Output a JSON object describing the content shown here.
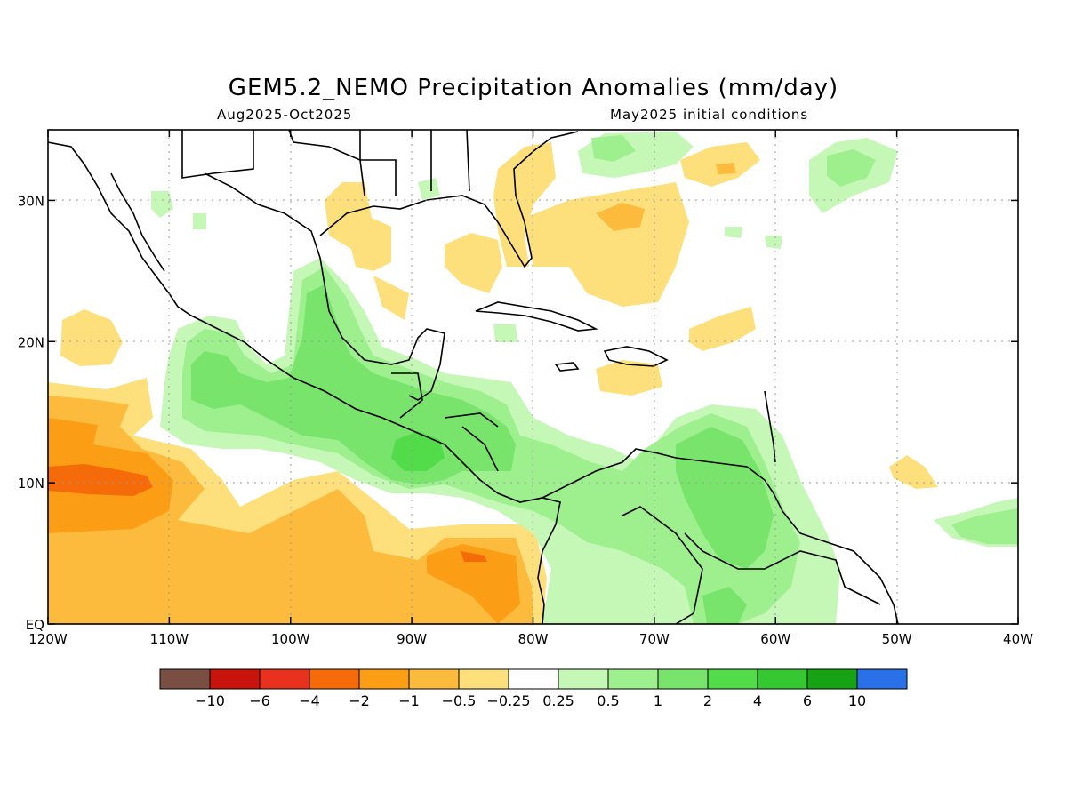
{
  "title": "GEM5.2_NEMO Precipitation Anomalies (mm/day)",
  "period": "Aug2025-Oct2025",
  "init": "May2025 initial conditions",
  "map": {
    "lon_range": [
      -120,
      -40
    ],
    "lat_range": [
      0,
      35
    ],
    "x_ticks": [
      "120W",
      "110W",
      "100W",
      "90W",
      "80W",
      "70W",
      "60W",
      "50W",
      "40W"
    ],
    "y_ticks": [
      "EQ",
      "10N",
      "20N",
      "30N"
    ],
    "grid": true
  },
  "colorbar": {
    "colors": [
      "#7a4f43",
      "#c8140c",
      "#e8321e",
      "#f56a09",
      "#fb9e16",
      "#fdbb3d",
      "#fde07c",
      "#ffffff",
      "#c5f7b6",
      "#9ef08e",
      "#78e46c",
      "#52dc4a",
      "#35c830",
      "#17a414",
      "#2a70e8"
    ],
    "labels": [
      "-10",
      "-6",
      "-4",
      "-2",
      "-1",
      "-0.5",
      "-0.25",
      "0.25",
      "0.5",
      "1",
      "2",
      "4",
      "6",
      "10"
    ]
  }
}
